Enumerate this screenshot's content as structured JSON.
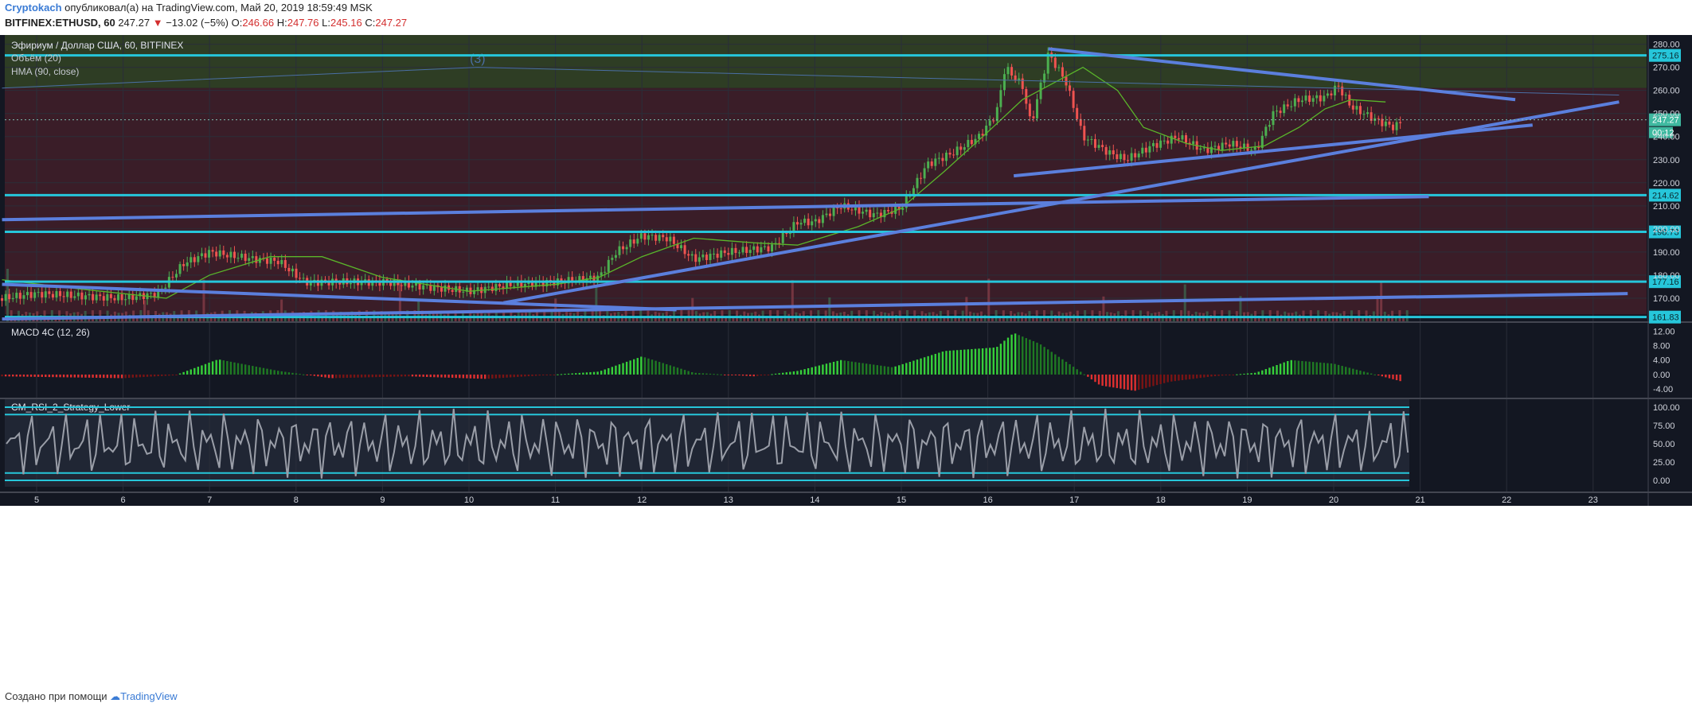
{
  "header": {
    "author": "Cryptokach",
    "published_text": "опубликовал(а) на TradingView.com, Май 20, 2019 18:59:49 MSK",
    "symbol": "BITFINEX:ETHUSD, 60",
    "last": "247.27",
    "change": "−13.02 (−5%)",
    "o_label": "O:",
    "o": "246.66",
    "h_label": "H:",
    "h": "247.76",
    "l_label": "L:",
    "l": "245.16",
    "c_label": "C:",
    "c": "247.27"
  },
  "legend": {
    "title": "Эфириум / Доллар США, 60, BITFINEX",
    "volume": "Объём (20)",
    "hma": "HMA (90, close)",
    "wave_label": "(3)"
  },
  "price_badges": {
    "last": "247.27",
    "countdown": "00:12",
    "levels": [
      "275.16",
      "214.62",
      "198.73",
      "177.16",
      "161.83"
    ]
  },
  "macd": {
    "title": "MACD 4C (12, 26)"
  },
  "rsi": {
    "title": "CM_RSI_2_Strategy_Lower"
  },
  "footer": {
    "text": "Создано при помощи",
    "brand": "TradingView"
  },
  "colors": {
    "up": "#4caf50",
    "down": "#ef5350",
    "trend": "#5b7fdd",
    "level": "#26c6da",
    "hma": "#5ab52a",
    "bg": "#131722",
    "upper_zone": "#2e3d24",
    "lower_zone": "#3a1d28"
  },
  "chart_data": {
    "type": "candlestick",
    "price_axis": {
      "ticks": [
        170,
        180,
        190,
        200,
        210,
        220,
        230,
        240,
        250,
        260,
        270,
        280
      ],
      "range": [
        160,
        284
      ]
    },
    "x_axis": {
      "ticks": [
        "5",
        "6",
        "7",
        "8",
        "9",
        "10",
        "11",
        "12",
        "13",
        "14",
        "15",
        "16",
        "17",
        "18",
        "19",
        "20",
        "21",
        "22",
        "23"
      ]
    },
    "horizontal_levels": [
      275.16,
      214.62,
      198.73,
      177.16,
      161.83
    ],
    "price_path": [
      {
        "x": 4.6,
        "y": 170
      },
      {
        "x": 5.0,
        "y": 172
      },
      {
        "x": 5.5,
        "y": 171
      },
      {
        "x": 6.0,
        "y": 170
      },
      {
        "x": 6.4,
        "y": 172
      },
      {
        "x": 6.7,
        "y": 185
      },
      {
        "x": 7.0,
        "y": 190
      },
      {
        "x": 7.5,
        "y": 187
      },
      {
        "x": 7.8,
        "y": 186
      },
      {
        "x": 8.1,
        "y": 177
      },
      {
        "x": 8.5,
        "y": 177
      },
      {
        "x": 9.0,
        "y": 177
      },
      {
        "x": 9.5,
        "y": 175
      },
      {
        "x": 10.0,
        "y": 173
      },
      {
        "x": 10.5,
        "y": 176
      },
      {
        "x": 11.0,
        "y": 177
      },
      {
        "x": 11.5,
        "y": 179
      },
      {
        "x": 11.7,
        "y": 190
      },
      {
        "x": 12.0,
        "y": 197
      },
      {
        "x": 12.3,
        "y": 196
      },
      {
        "x": 12.6,
        "y": 187
      },
      {
        "x": 13.0,
        "y": 190
      },
      {
        "x": 13.5,
        "y": 192
      },
      {
        "x": 13.8,
        "y": 203
      },
      {
        "x": 14.0,
        "y": 203
      },
      {
        "x": 14.3,
        "y": 210
      },
      {
        "x": 14.7,
        "y": 206
      },
      {
        "x": 15.0,
        "y": 209
      },
      {
        "x": 15.3,
        "y": 228
      },
      {
        "x": 15.6,
        "y": 233
      },
      {
        "x": 15.9,
        "y": 240
      },
      {
        "x": 16.1,
        "y": 250
      },
      {
        "x": 16.2,
        "y": 270
      },
      {
        "x": 16.4,
        "y": 262
      },
      {
        "x": 16.5,
        "y": 245
      },
      {
        "x": 16.7,
        "y": 276
      },
      {
        "x": 16.9,
        "y": 264
      },
      {
        "x": 17.1,
        "y": 240
      },
      {
        "x": 17.4,
        "y": 233
      },
      {
        "x": 17.6,
        "y": 230
      },
      {
        "x": 17.9,
        "y": 236
      },
      {
        "x": 18.2,
        "y": 240
      },
      {
        "x": 18.5,
        "y": 234
      },
      {
        "x": 18.8,
        "y": 237
      },
      {
        "x": 19.1,
        "y": 234
      },
      {
        "x": 19.3,
        "y": 250
      },
      {
        "x": 19.6,
        "y": 256
      },
      {
        "x": 19.9,
        "y": 257
      },
      {
        "x": 20.05,
        "y": 262
      },
      {
        "x": 20.2,
        "y": 253
      },
      {
        "x": 20.5,
        "y": 247
      },
      {
        "x": 20.7,
        "y": 244
      },
      {
        "x": 20.8,
        "y": 247
      }
    ],
    "hma_path": [
      {
        "x": 4.6,
        "y": 178
      },
      {
        "x": 5.5,
        "y": 174
      },
      {
        "x": 6.5,
        "y": 170
      },
      {
        "x": 7.0,
        "y": 180
      },
      {
        "x": 7.7,
        "y": 188
      },
      {
        "x": 8.3,
        "y": 188
      },
      {
        "x": 9.0,
        "y": 179
      },
      {
        "x": 10.0,
        "y": 173
      },
      {
        "x": 11.0,
        "y": 176
      },
      {
        "x": 11.5,
        "y": 179
      },
      {
        "x": 12.0,
        "y": 188
      },
      {
        "x": 12.6,
        "y": 196
      },
      {
        "x": 13.3,
        "y": 194
      },
      {
        "x": 13.8,
        "y": 193
      },
      {
        "x": 14.5,
        "y": 201
      },
      {
        "x": 15.0,
        "y": 209
      },
      {
        "x": 15.5,
        "y": 225
      },
      {
        "x": 16.0,
        "y": 242
      },
      {
        "x": 16.4,
        "y": 256
      },
      {
        "x": 16.8,
        "y": 264
      },
      {
        "x": 17.1,
        "y": 270
      },
      {
        "x": 17.5,
        "y": 260
      },
      {
        "x": 17.8,
        "y": 244
      },
      {
        "x": 18.3,
        "y": 237
      },
      {
        "x": 18.7,
        "y": 234
      },
      {
        "x": 19.2,
        "y": 236
      },
      {
        "x": 19.6,
        "y": 244
      },
      {
        "x": 19.9,
        "y": 252
      },
      {
        "x": 20.2,
        "y": 256
      },
      {
        "x": 20.6,
        "y": 255
      }
    ],
    "trendlines": [
      {
        "x1": 4.6,
        "y1": 204,
        "x2": 21.1,
        "y2": 214
      },
      {
        "x1": 4.6,
        "y1": 176,
        "x2": 12.4,
        "y2": 165
      },
      {
        "x1": 10.4,
        "y1": 168,
        "x2": 23.3,
        "y2": 255
      },
      {
        "x1": 16.3,
        "y1": 223,
        "x2": 22.3,
        "y2": 245
      },
      {
        "x1": 16.7,
        "y1": 278,
        "x2": 22.1,
        "y2": 256
      },
      {
        "x1": 4.6,
        "y1": 161,
        "x2": 23.4,
        "y2": 172
      }
    ],
    "macd": {
      "axis_ticks": [
        -4.0,
        0.0,
        4.0,
        8.0,
        12.0
      ],
      "histogram_path": [
        {
          "x": 4.6,
          "y": -0.5
        },
        {
          "x": 6.0,
          "y": -1.0
        },
        {
          "x": 6.6,
          "y": -0.2
        },
        {
          "x": 7.1,
          "y": 4.2
        },
        {
          "x": 7.8,
          "y": 1.0
        },
        {
          "x": 8.4,
          "y": -1.0
        },
        {
          "x": 9.3,
          "y": -0.5
        },
        {
          "x": 10.2,
          "y": -1.2
        },
        {
          "x": 10.8,
          "y": -0.3
        },
        {
          "x": 11.5,
          "y": 0.8
        },
        {
          "x": 12.0,
          "y": 5.0
        },
        {
          "x": 12.6,
          "y": 0.5
        },
        {
          "x": 13.3,
          "y": -0.5
        },
        {
          "x": 13.8,
          "y": 1.0
        },
        {
          "x": 14.3,
          "y": 4.0
        },
        {
          "x": 14.9,
          "y": 2.0
        },
        {
          "x": 15.5,
          "y": 6.5
        },
        {
          "x": 16.1,
          "y": 7.5
        },
        {
          "x": 16.3,
          "y": 11.5
        },
        {
          "x": 16.6,
          "y": 8.5
        },
        {
          "x": 17.0,
          "y": 2.0
        },
        {
          "x": 17.3,
          "y": -3.0
        },
        {
          "x": 17.7,
          "y": -4.5
        },
        {
          "x": 18.1,
          "y": -2.0
        },
        {
          "x": 18.6,
          "y": -0.5
        },
        {
          "x": 19.1,
          "y": 0.5
        },
        {
          "x": 19.5,
          "y": 4.0
        },
        {
          "x": 20.0,
          "y": 3.0
        },
        {
          "x": 20.4,
          "y": 0.5
        },
        {
          "x": 20.8,
          "y": -2.0
        }
      ]
    },
    "rsi": {
      "axis_ticks": [
        0.0,
        25.0,
        50.0,
        75.0,
        100.0
      ],
      "bands": [
        100,
        90,
        10,
        0
      ]
    }
  }
}
